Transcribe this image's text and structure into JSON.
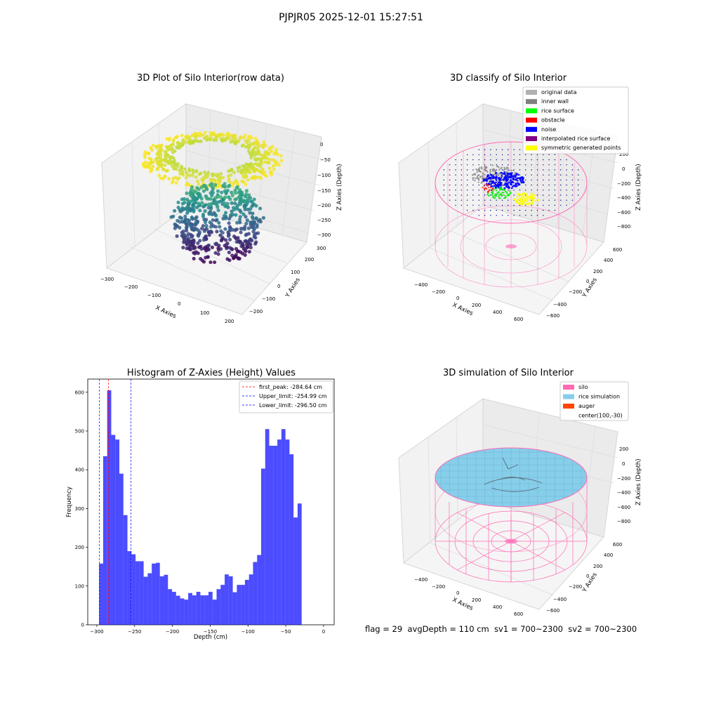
{
  "figure_title": "PJPJR05 2025-12-01 15:27:51",
  "footer": "flag = 29  avgDepth = 110 cm  sv1 = 700~2300  sv2 = 700~2300",
  "panels": {
    "raw": {
      "title": "3D Plot of Silo Interior(row data)",
      "xlabel": "X Axies",
      "ylabel": "Y Axies",
      "zlabel": "Z Axies (Depth)",
      "xticks": [
        "−300",
        "−200",
        "−100",
        "0",
        "100",
        "200"
      ],
      "yticks": [
        "−200",
        "−100",
        "0",
        "100",
        "200",
        "300"
      ],
      "zticks": [
        "0",
        "−50",
        "−100",
        "−150",
        "−200",
        "−250",
        "−300"
      ]
    },
    "classify": {
      "title": "3D classify of Silo Interior",
      "xlabel": "X Axies",
      "ylabel": "Y Axies",
      "zlabel": "Z Axies (Depth)",
      "xticks": [
        "−400",
        "−200",
        "0",
        "200",
        "400",
        "600"
      ],
      "yticks": [
        "−600",
        "−400",
        "−200",
        "0",
        "200",
        "400",
        "600"
      ],
      "zticks": [
        "200",
        "0",
        "−200",
        "−400",
        "−600",
        "−800"
      ],
      "legend": [
        {
          "label": "original data",
          "color": "#b0b0b0"
        },
        {
          "label": "inner wall",
          "color": "#808080"
        },
        {
          "label": "rice surface",
          "color": "#00ff00"
        },
        {
          "label": "obstacle",
          "color": "#ff0000"
        },
        {
          "label": "noise",
          "color": "#0000ff"
        },
        {
          "label": "interpolated rice surface",
          "color": "#800080"
        },
        {
          "label": "symmetric generated points",
          "color": "#ffff00"
        }
      ]
    },
    "simulation": {
      "title": "3D simulation of Silo Interior",
      "xlabel": "X Axies",
      "ylabel": "Y Axies",
      "zlabel": "Z Axies (Depth)",
      "xticks": [
        "−400",
        "−200",
        "0",
        "200",
        "400",
        "600"
      ],
      "yticks": [
        "−600",
        "−400",
        "−200",
        "0",
        "200",
        "400",
        "600"
      ],
      "zticks": [
        "200",
        "0",
        "−200",
        "−400",
        "−600",
        "−800"
      ],
      "legend": [
        {
          "label": "silo",
          "color": "#ff69b4"
        },
        {
          "label": "rice simulation",
          "color": "#87ceeb"
        },
        {
          "label": "auger",
          "color": "#ff4500"
        },
        {
          "label": "center(100,-30)",
          "color": ""
        }
      ]
    }
  },
  "chart_data": {
    "type": "bar",
    "title": "Histogram of Z-Axies (Height) Values",
    "xlabel": "Depth (cm)",
    "ylabel": "Frequency",
    "bar_color": "#0000ff",
    "bin_start": -297,
    "bin_width": 5.36,
    "values": [
      158,
      435,
      605,
      490,
      478,
      390,
      283,
      190,
      182,
      164,
      164,
      124,
      133,
      158,
      160,
      125,
      129,
      92,
      85,
      75,
      68,
      65,
      82,
      76,
      85,
      76,
      76,
      85,
      65,
      92,
      103,
      130,
      125,
      84,
      103,
      103,
      116,
      130,
      162,
      180,
      403,
      505,
      462,
      462,
      478,
      505,
      478,
      440,
      277,
      313
    ],
    "xlim": [
      -312,
      14
    ],
    "ylim": [
      0,
      634
    ],
    "xticks": [
      -300,
      -250,
      -200,
      -150,
      -100,
      -50,
      0
    ],
    "yticks": [
      0,
      100,
      200,
      300,
      400,
      500,
      600
    ],
    "vlines": [
      {
        "label": "first_peak: -284.64 cm",
        "x": -284.64,
        "color": "#ff0000"
      },
      {
        "label": "Upper_limit: -254.99 cm",
        "x": -254.99,
        "color": "#0000ff"
      },
      {
        "label": "Lower_limit: -296.50 cm",
        "x": -296.5,
        "color": "#0000ff"
      }
    ],
    "legend": "top-right"
  }
}
